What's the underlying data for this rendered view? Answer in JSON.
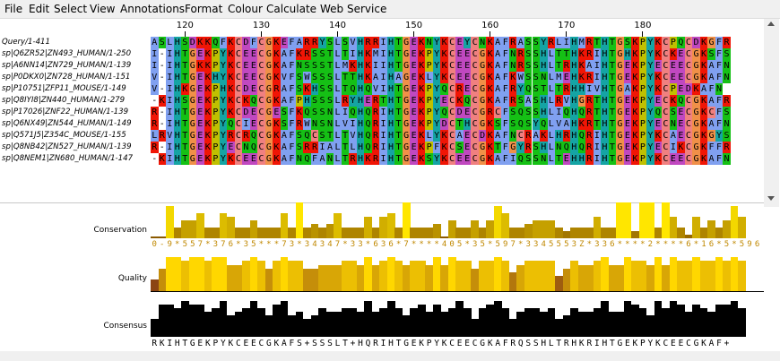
{
  "menubar": {
    "items": [
      "File",
      "Edit",
      "Select",
      "View",
      "Annotations",
      "Format",
      "Colour",
      "Calculate",
      "Web Service"
    ]
  },
  "ruler": {
    "labels": [
      "120",
      "130",
      "140",
      "150",
      "160",
      "170",
      "180"
    ]
  },
  "sequences": [
    {
      "name": "Query/1-411",
      "residues": "ASLHSDKKQFKCDFCGKEFARRYSLSVHRRIHTGEKNYKCEYCNKAFRASSYRLIHMRTHTGSKPYKCPQCDKGFR"
    },
    {
      "name": "sp|Q6ZR52|ZN493_HUMAN/1-250",
      "residues": "I-IHTGEKPYKCEECGKAFKRSSTLTIHKMIHTGEKPYKCEECGKAFNRSSHLTTHKRIHTGHKPYKCKECGKSFS"
    },
    {
      "name": "sp|A6NN14|ZN729_HUMAN/1-139",
      "residues": "I-IHTGKKPYKCEECGKAFNSSSTLMKHKIIHTGEKPYKCEECGKAFNRSSHLTRHKAIHTGEKPYECEECGKAFN"
    },
    {
      "name": "sp|P0DKX0|ZN728_HUMAN/1-151",
      "residues": "V-IHTGEKHYKCEECGKVFSWSSSLTTHKAIHAGEKLYKCEECGKAFKWSSNLMEHKRIHTGEKPYKCEECGKAFN"
    },
    {
      "name": "sp|P10751|ZFP11_MOUSE/1-149",
      "residues": "V-IHKGEKPHKCDECGRAFSKHSSLTQHQVIHTGEKPYQCRECGKAFRYQSTLTRHHIVHTGAKPYKCPEDKAFN"
    },
    {
      "name": "sp|Q8IYI8|ZN440_HUMAN/1-279",
      "residues": "-KIHSGEKPYKCKQCGKAFPHSSSLRYHERTHTGEKPYECKQCGKAFRSASHLRVHGRTHTGEKPYECKQCGKAFR"
    },
    {
      "name": "sp|P17026|ZNF22_HUMAN/1-139",
      "residues": "R-IHTGEKPYKCDECGESFKQSSNLIQHQRIHTGEKPYQCDECGRCFSQSSHLIQHQRTHTGEKPYQCSECGKCFS"
    },
    {
      "name": "sp|Q6NX49|ZN544_HUMAN/1-149",
      "residues": "R-IHTGEKPYQCIECGKSFRWNSNLVIHQRIHTGEKPYDCTHCGKSFSQSYQLVAHKRTHTGEKPYECNECGKAFN"
    },
    {
      "name": "sp|Q571J5|Z354C_MOUSE/1-155",
      "residues": "LRVHTGEKPYRCRQCGKAFSQCSTLTVHQRIHTGEKLYKCAECDKAFNCRAKLHRHQRIHTGEKPYKCAECGKGYS"
    },
    {
      "name": "sp|Q8NB42|ZN527_HUMAN/1-139",
      "residues": "R-IHTGEKPYECNQCGKAFSRRIALTLHQRIHTGEKPFKCSECGKTFGYRSHLNQHQRIHTGEKPYECIKCGKFFR"
    },
    {
      "name": "sp|Q8NEM1|ZN680_HUMAN/1-147",
      "residues": "-KIHTGEKPYKCEECGKAFNQFANLTRHKRIHTGEKSYKCEECGKAFIQSSNLTEHHRIHTGEKPYKCEECGKAFN"
    }
  ],
  "annotations": {
    "conservation_label": "Conservation",
    "quality_label": "Quality",
    "consensus_label": "Consensus",
    "conservation_digits": "0-9*557*376*35***73*34347*33*636*7****405*35*597*3345553Z*336****2****6*16*5*596",
    "conservation_values": [
      0,
      0,
      9,
      3,
      5,
      5,
      7,
      3,
      3,
      7,
      6,
      3,
      3,
      5,
      3,
      3,
      3,
      7,
      3,
      10,
      3,
      4,
      3,
      4,
      7,
      3,
      3,
      3,
      6,
      3,
      6,
      7,
      3,
      10,
      3,
      3,
      3,
      4,
      0,
      5,
      3,
      3,
      5,
      3,
      5,
      9,
      7,
      3,
      3,
      4,
      5,
      5,
      5,
      3,
      2,
      3,
      3,
      3,
      6,
      3,
      3,
      10,
      10,
      2,
      10,
      10,
      3,
      10,
      6,
      3,
      1,
      6,
      3,
      5,
      3,
      5,
      9,
      6
    ],
    "quality_values": [
      3,
      6,
      9,
      9,
      8,
      9,
      9,
      8,
      9,
      9,
      7,
      7,
      8,
      9,
      8,
      6,
      8,
      9,
      8,
      8,
      6,
      6,
      7,
      7,
      7,
      8,
      8,
      7,
      9,
      7,
      8,
      9,
      8,
      7,
      8,
      8,
      7,
      9,
      7,
      9,
      8,
      8,
      6,
      8,
      8,
      9,
      8,
      5,
      7,
      8,
      8,
      8,
      8,
      4,
      6,
      8,
      7,
      7,
      8,
      9,
      7,
      7,
      9,
      8,
      8,
      7,
      9,
      7,
      9,
      8,
      8,
      9,
      8,
      8,
      9,
      8,
      9,
      8
    ],
    "consensus_values": [
      5,
      9,
      9,
      8,
      10,
      9,
      9,
      7,
      8,
      10,
      6,
      7,
      8,
      10,
      8,
      6,
      9,
      10,
      6,
      7,
      5,
      6,
      8,
      7,
      7,
      8,
      8,
      7,
      10,
      7,
      8,
      10,
      8,
      6,
      8,
      9,
      7,
      9,
      7,
      8,
      10,
      8,
      5,
      8,
      9,
      10,
      8,
      5,
      7,
      8,
      8,
      7,
      8,
      5,
      6,
      8,
      7,
      7,
      8,
      10,
      7,
      7,
      10,
      9,
      8,
      6,
      10,
      8,
      10,
      9,
      7,
      9,
      8,
      7,
      9,
      9,
      10,
      8
    ],
    "consensus_sequence": "RKIHTGEKPYKCEECGKAFS+SSSLT+HQRIHTGEKPYKCEECGKAFRQSSHLTRHKRIHTGEKPYKCEECGKAF+",
    "colors": {
      "conservation_high": "#ffe600",
      "conservation_low": "#8b5a00",
      "quality_high": "#ffd700",
      "quality_low": "#8b4513",
      "consensus": "#000000",
      "digit": "#c08800"
    }
  },
  "residue_colors": {
    "A": "#80a0f0",
    "I": "#80a0f0",
    "L": "#80a0f0",
    "M": "#80a0f0",
    "F": "#80a0f0",
    "W": "#80a0f0",
    "V": "#80a0f0",
    "K": "#f01505",
    "R": "#f01505",
    "E": "#c048c0",
    "D": "#c048c0",
    "N": "#15c015",
    "Q": "#15c015",
    "S": "#15c015",
    "T": "#15c015",
    "C": "#f08080",
    "G": "#f09048",
    "P": "#c0c000",
    "H": "#15a4a4",
    "Y": "#15a4a4"
  }
}
